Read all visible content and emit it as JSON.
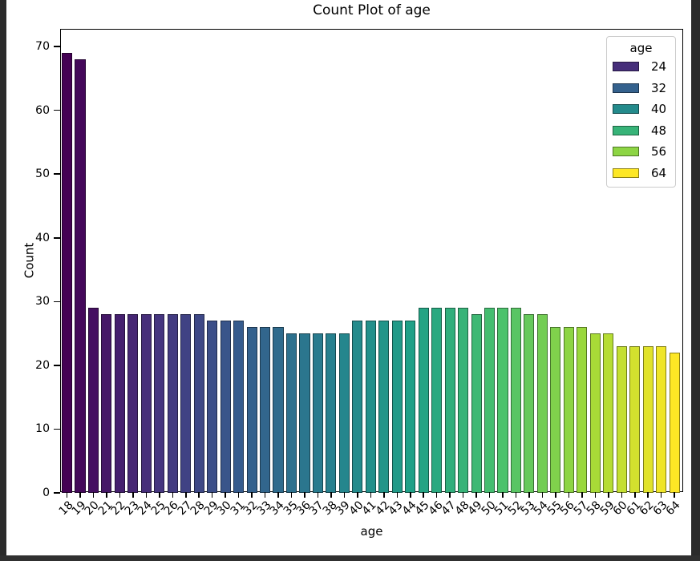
{
  "window": {
    "background_color": "#2b2b2b",
    "figure_background_color": "#ffffff"
  },
  "chart_data": {
    "type": "bar",
    "title": "Count Plot of age",
    "xlabel": "age",
    "ylabel": "Count",
    "categories": [
      "18",
      "19",
      "20",
      "21",
      "22",
      "23",
      "24",
      "25",
      "26",
      "27",
      "28",
      "29",
      "30",
      "31",
      "32",
      "33",
      "34",
      "35",
      "36",
      "37",
      "38",
      "39",
      "40",
      "41",
      "42",
      "43",
      "44",
      "45",
      "46",
      "47",
      "48",
      "49",
      "50",
      "51",
      "52",
      "53",
      "54",
      "55",
      "56",
      "57",
      "58",
      "59",
      "60",
      "61",
      "62",
      "63",
      "64"
    ],
    "values": [
      69,
      68,
      29,
      28,
      28,
      28,
      28,
      28,
      28,
      28,
      28,
      27,
      27,
      27,
      26,
      26,
      26,
      25,
      25,
      25,
      25,
      25,
      27,
      27,
      27,
      27,
      27,
      29,
      29,
      29,
      29,
      28,
      29,
      29,
      29,
      28,
      28,
      26,
      26,
      26,
      25,
      25,
      23,
      23,
      23,
      23,
      22
    ],
    "yticks": [
      0,
      10,
      20,
      30,
      40,
      50,
      60,
      70
    ],
    "ylim": [
      0,
      72.6
    ],
    "grid": false,
    "palette": "viridis",
    "colormap_anchors": [
      "#440154",
      "#46327e",
      "#365c8d",
      "#277f8e",
      "#1fa187",
      "#4ac16d",
      "#a0da39",
      "#fde725"
    ],
    "legend": {
      "title": "age",
      "position": "upper right",
      "entries": [
        "24",
        "32",
        "40",
        "48",
        "56",
        "64"
      ]
    }
  }
}
